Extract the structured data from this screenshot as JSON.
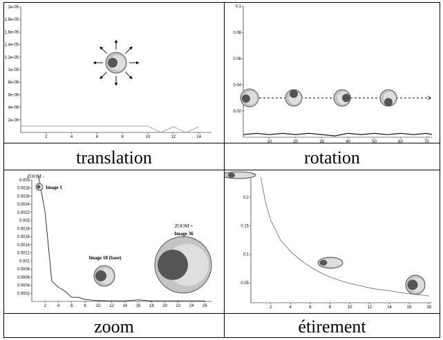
{
  "captions": {
    "translation": "translation",
    "rotation": "rotation",
    "zoom": "zoom",
    "stretch": "étirement"
  },
  "chart_data": [
    {
      "type": "line",
      "name": "translation",
      "xlim": [
        0,
        15
      ],
      "ylim": [
        0,
        2e-05
      ],
      "x_ticks": [
        "2",
        "4",
        "6",
        "8",
        "10",
        "12",
        "14"
      ],
      "y_ticks": [
        "2e-06",
        "4e-06",
        "6e-06",
        "8e-06",
        "1e-05",
        "1.2e-05",
        "1.4e-05",
        "1.6e-05",
        "1.8e-05",
        "2e-05"
      ],
      "series": [
        {
          "x": [
            0,
            2,
            4,
            6,
            8,
            10,
            11,
            12,
            13,
            14
          ],
          "y": [
            1e-06,
            1e-06,
            1e-06,
            1e-06,
            1e-06,
            1e-06,
            0,
            9e-07,
            0,
            9e-07
          ]
        }
      ]
    },
    {
      "type": "line",
      "name": "rotation",
      "xlim": [
        0,
        72
      ],
      "ylim": [
        0,
        0.1
      ],
      "x_ticks": [
        "10",
        "20",
        "30",
        "40",
        "50",
        "60",
        "70"
      ],
      "y_ticks": [
        "0.02",
        "0.04",
        "0.06",
        "0.08",
        "0.1"
      ],
      "series": [
        {
          "x": [
            0,
            5,
            10,
            15,
            20,
            25,
            30,
            35,
            40,
            45,
            50,
            55,
            60,
            65,
            70,
            72
          ],
          "y": [
            0.002,
            0.003,
            0.002,
            0.003,
            0.002,
            0.003,
            0.002,
            0.001,
            0.003,
            0.002,
            0.003,
            0.002,
            0.003,
            0.002,
            0.003,
            0.002
          ]
        }
      ]
    },
    {
      "type": "line",
      "name": "zoom",
      "xlim": [
        0,
        27
      ],
      "ylim": [
        0,
        0.003
      ],
      "x_ticks": [
        "2",
        "4",
        "6",
        "8",
        "10",
        "12",
        "14",
        "16",
        "18",
        "20",
        "22",
        "24",
        "26"
      ],
      "y_ticks": [
        "0.0002",
        "0.0004",
        "0.0006",
        "0.0008",
        "0.001",
        "0.0012",
        "0.0014",
        "0.0016",
        "0.0018",
        "0.002",
        "0.0022",
        "0.0024",
        "0.0026",
        "0.0028",
        "0.003"
      ],
      "annotations": [
        "ZOOM –",
        "Image 1",
        "Image 18 (base)",
        "ZOOM +",
        "Image 36"
      ],
      "series": [
        {
          "x": [
            1,
            2,
            3,
            4,
            5,
            6,
            7,
            8,
            9,
            10,
            12,
            14,
            16,
            18,
            20,
            22,
            24,
            26
          ],
          "y": [
            0.0031,
            0.0022,
            0.0005,
            0.00035,
            0.00025,
            0.0001,
            0.0001,
            5e-05,
            3e-05,
            2e-05,
            1e-05,
            1e-05,
            4e-05,
            1e-05,
            1e-05,
            1e-05,
            1e-05,
            1e-05
          ]
        }
      ]
    },
    {
      "type": "line",
      "name": "etirement",
      "xlim": [
        0,
        18.3
      ],
      "ylim": [
        0.015,
        0.24
      ],
      "x_ticks": [
        "2",
        "4",
        "6",
        "8",
        "10",
        "12",
        "14",
        "16",
        "18"
      ],
      "y_ticks": [
        "0.05",
        "0.1",
        "0.15",
        "0.2"
      ],
      "series": [
        {
          "x": [
            1,
            1.5,
            2,
            3,
            4,
            5,
            6,
            7,
            8,
            9,
            10,
            11,
            12,
            13,
            14,
            15,
            16,
            17,
            18
          ],
          "y": [
            0.235,
            0.19,
            0.16,
            0.125,
            0.105,
            0.09,
            0.078,
            0.068,
            0.06,
            0.054,
            0.049,
            0.045,
            0.041,
            0.038,
            0.036,
            0.033,
            0.031,
            0.029,
            0.027
          ]
        }
      ]
    }
  ]
}
